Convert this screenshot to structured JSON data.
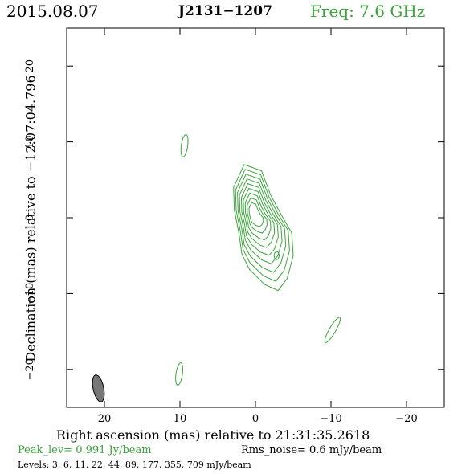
{
  "header": {
    "date": "2015.08.07",
    "source": "J2131−1207",
    "freq": "Freq: 7.6 GHz"
  },
  "footer": {
    "peak": "Peak_lev=  0.991 Jy/beam",
    "rms": "Rms_noise=   0.6 mJy/beam",
    "levels": "Levels:   3,   6,  11,  22,  44,  89, 177, 355, 709 mJy/beam"
  },
  "colors": {
    "contour": "#3aa53a",
    "beam": "#777777",
    "text_accent": "#3aa53a"
  },
  "chart_data": {
    "type": "contour",
    "title": "J2131−1207",
    "xlabel": "Right ascension (mas) relative to 21:31:35.2618",
    "ylabel": "Declination (mas) relative to −12:07:04.796",
    "xlim": [
      25,
      -25
    ],
    "ylim": [
      -25,
      25
    ],
    "x_ticks": [
      20,
      10,
      0,
      -10,
      -20
    ],
    "x_tick_labels": [
      "20",
      "10",
      "0",
      "−10",
      "−20"
    ],
    "y_ticks": [
      20,
      10,
      0,
      -10,
      -20
    ],
    "y_tick_labels": [
      "20",
      "10",
      "0",
      "−10",
      "−20"
    ],
    "peak_jy_per_beam": 0.991,
    "rms_noise_mjy_per_beam": 0.6,
    "contour_levels_mjy_per_beam": [
      3,
      6,
      11,
      22,
      44,
      89,
      177,
      355,
      709
    ],
    "beam": {
      "x": 20.8,
      "y": -22.5,
      "major": 3.6,
      "minor": 1.4,
      "angle_deg": -12
    },
    "core": {
      "x": 0.2,
      "y": 0.4,
      "levels": 9
    },
    "jet_component": {
      "x": -2.8,
      "y": -5.0
    },
    "isolated_features": [
      {
        "x": 9.4,
        "y": 9.5
      },
      {
        "x": 10.1,
        "y": -20.6
      },
      {
        "x": -10.2,
        "y": -14.8
      }
    ]
  }
}
